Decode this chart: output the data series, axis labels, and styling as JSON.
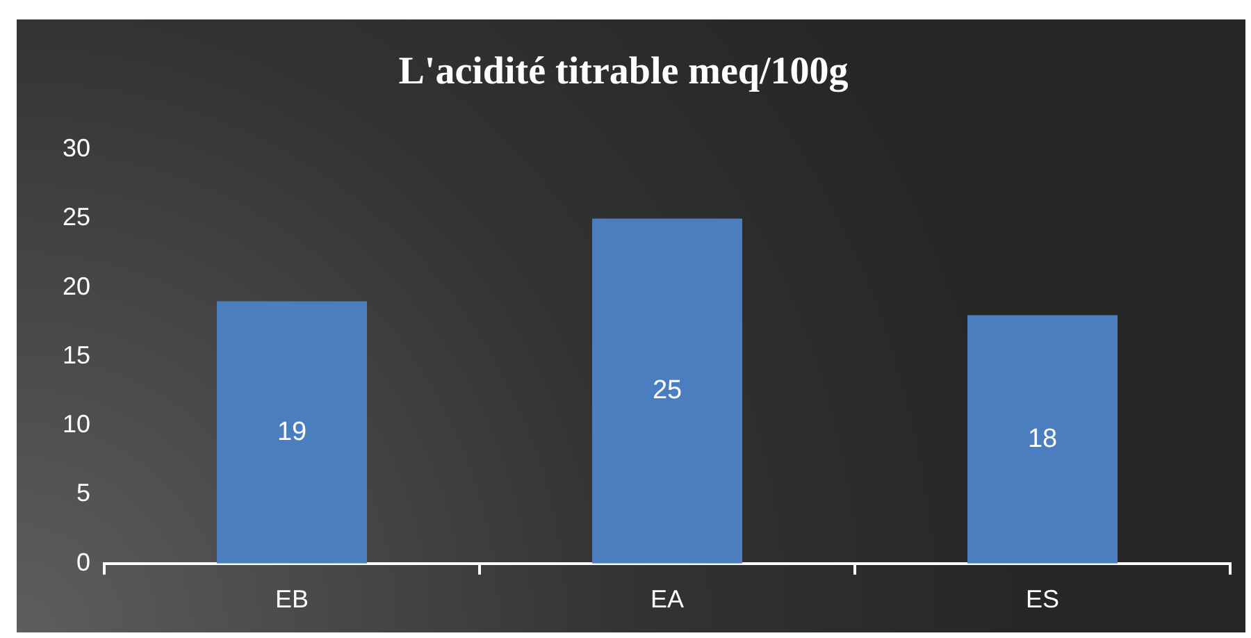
{
  "chart_data": {
    "type": "bar",
    "title": "L'acidité titrable meq/100g",
    "categories": [
      "EB",
      "EA",
      "ES"
    ],
    "values": [
      19,
      25,
      18
    ],
    "color": "#4a7ebf",
    "ylim": [
      0,
      30
    ],
    "yticks": [
      0,
      5,
      10,
      15,
      20,
      25,
      30
    ],
    "grid": false,
    "legend": false,
    "data_labels": true
  }
}
